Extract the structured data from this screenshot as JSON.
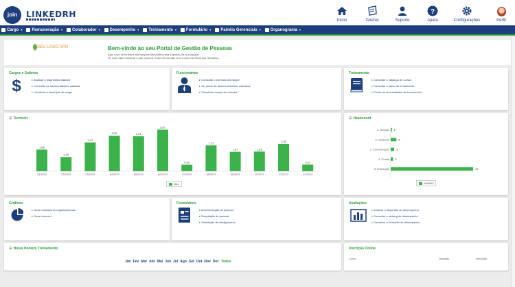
{
  "app": {
    "logo_badge": "join",
    "logo_name": "LINKEDRH"
  },
  "top_nav": [
    {
      "label": "Início",
      "icon": "home-icon"
    },
    {
      "label": "Tarefas",
      "icon": "tasks-icon"
    },
    {
      "label": "Suporte",
      "icon": "support-icon"
    },
    {
      "label": "Ajuda",
      "icon": "help-icon"
    },
    {
      "label": "Configurações",
      "icon": "gear-icon"
    },
    {
      "label": "Perfil",
      "icon": "avatar"
    }
  ],
  "menu": [
    {
      "label": "Cargo",
      "icon": "briefcase-icon"
    },
    {
      "label": "Remuneração",
      "icon": "money-icon"
    },
    {
      "label": "Colaborador",
      "icon": "user-icon"
    },
    {
      "label": "Desempenho",
      "icon": "sitemap-icon"
    },
    {
      "label": "Treinamento",
      "icon": "book-icon"
    },
    {
      "label": "Formulário",
      "icon": "form-icon"
    },
    {
      "label": "Painéis Gerenciais",
      "icon": "panel-icon"
    },
    {
      "label": "Organograma",
      "icon": "org-icon"
    }
  ],
  "welcome": {
    "logo_text": "SEU LOGOTIPO",
    "title": "Bem-vindo ao seu Portal de Gestão de Pessoas",
    "line1": "Aqui você encontrará informações relevantes para a gestão da sua equipe.",
    "line2": "Se você não encontrar o que procura, entre em contato com a área de Recursos Humanos."
  },
  "cards": {
    "cargos": {
      "title": "Cargos e Salários",
      "links": [
        "Analisar o diagnóstico salarial",
        "Consultar as movimentações salariais",
        "Visualizar a descrição de cargo"
      ]
    },
    "funcionarios": {
      "title": "Funcionários",
      "links": [
        "Consultar o currículo da equipe",
        "Ver plano de desenvolvimento individual",
        "Visualizar o mapa de carreira"
      ]
    },
    "treinamento": {
      "title": "Treinamento",
      "links": [
        "Consultar o catálogo de cursos",
        "Consultar o plano de treinamento",
        "Enviar as necessidades de treinamento"
      ]
    },
    "graficos": {
      "title": "Gráficos",
      "links": [
        "Gerar indicadores organizacionais",
        "Gerar turnover"
      ]
    },
    "formularios": {
      "title": "Formulários",
      "links": [
        "Movimentação de pessoal",
        "Requisição de pessoal",
        "Solicitação de desligamento"
      ]
    },
    "avaliacoes": {
      "title": "Avaliações",
      "links": [
        "Analisar o dispersão do desempenho",
        "Consultar o ranking de desempenho",
        "Visualizar a evolução do desempenho"
      ]
    },
    "horas": {
      "title": "Horas Homem Treinamento"
    },
    "inscricao": {
      "title": "Inscrição Online",
      "headers": [
        "Curso",
        "Duração",
        "Inscrição"
      ]
    }
  },
  "months": [
    "Jan",
    "Fev",
    "Mar",
    "Abr",
    "Mai",
    "Jun",
    "Jul",
    "Ago",
    "Set",
    "Out",
    "Nov",
    "Dez",
    "Todos"
  ],
  "chart_data": [
    {
      "type": "bar",
      "title": "Turnover",
      "categories": [
        "01/2013",
        "02/2013",
        "03/2013",
        "04/2013",
        "05/2013",
        "06/2013",
        "07/2013",
        "08/2013",
        "09/2013",
        "10/2013",
        "11/2013",
        "12/2013"
      ],
      "value_labels": [
        "1,86",
        "1,22",
        "2,47",
        "3,05",
        "3,01",
        "3,57",
        "0,56",
        "2,22",
        "1,67",
        "1,69",
        "2,36",
        "0,57"
      ],
      "series": [
        {
          "name": "Geo",
          "values": [
            1.86,
            1.22,
            2.47,
            3.05,
            3.01,
            3.57,
            0.56,
            2.22,
            1.67,
            1.69,
            2.36,
            0.57
          ]
        }
      ],
      "ylim": [
        0,
        4
      ],
      "legend": "bottom-center",
      "color": "#3cb34a"
    },
    {
      "type": "bar",
      "orientation": "horizontal",
      "title": "Headcount",
      "categories": [
        "1. Direção",
        "2. Gerência",
        "3. Coordenação",
        "4. Chefia",
        "5. Execução"
      ],
      "series": [
        {
          "name": "12/2013",
          "values": [
            1,
            5,
            3,
            2,
            72
          ]
        }
      ],
      "legend": "bottom-center",
      "color": "#3cb34a"
    }
  ]
}
